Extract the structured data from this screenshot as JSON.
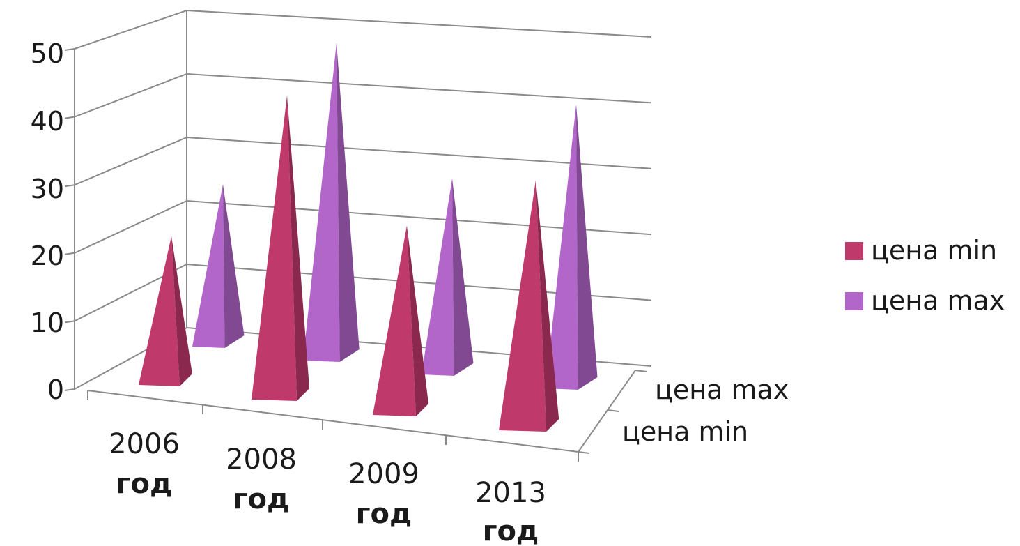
{
  "chart_data": {
    "type": "bar",
    "subtype": "3d-pyramid",
    "categories": [
      {
        "line1": "2006",
        "line2": "год"
      },
      {
        "line1": "2008",
        "line2": "год"
      },
      {
        "line1": "2009",
        "line2": "год"
      },
      {
        "line1": "2013",
        "line2": "год"
      }
    ],
    "series": [
      {
        "name": "цена min",
        "color": "#c0396b",
        "values": [
          22,
          45,
          28,
          37
        ]
      },
      {
        "name": "цена max",
        "color": "#b266c9",
        "values": [
          24,
          47,
          29,
          42
        ]
      }
    ],
    "depth_axis_labels": [
      "цена max",
      "цена min"
    ],
    "ylim": [
      0,
      50
    ],
    "y_ticks": [
      "0",
      "10",
      "20",
      "30",
      "40",
      "50"
    ],
    "grid": true,
    "legend_position": "right"
  }
}
